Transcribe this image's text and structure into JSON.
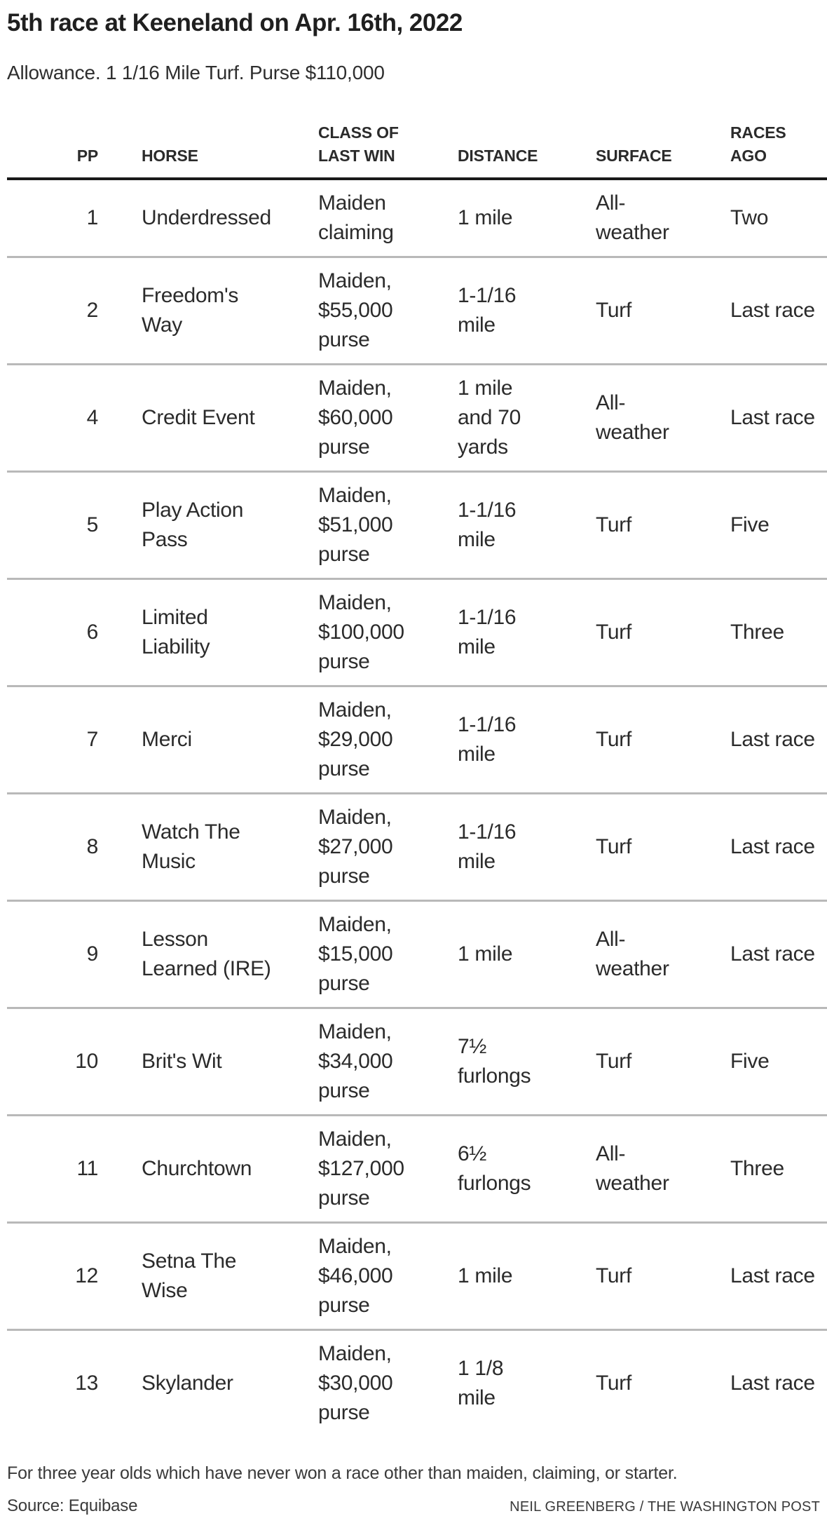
{
  "chart_data": {
    "type": "table",
    "title": "5th race at Keeneland on Apr. 16th, 2022",
    "subtitle": "Allowance. 1 1/16 Mile Turf. Purse $110,000",
    "columns": [
      {
        "key": "pp",
        "label_lines": [
          "PP"
        ]
      },
      {
        "key": "horse",
        "label_lines": [
          "HORSE"
        ]
      },
      {
        "key": "class_of_last_win",
        "label_lines": [
          "CLASS OF",
          "LAST WIN"
        ]
      },
      {
        "key": "distance",
        "label_lines": [
          "DISTANCE"
        ]
      },
      {
        "key": "surface",
        "label_lines": [
          "SURFACE"
        ]
      },
      {
        "key": "races_ago",
        "label_lines": [
          "RACES AGO"
        ]
      }
    ],
    "rows": [
      {
        "pp": "1",
        "horse": [
          "Underdressed"
        ],
        "class_of_last_win": [
          "Maiden",
          "claiming"
        ],
        "distance": [
          "1 mile"
        ],
        "surface": [
          "All-",
          "weather"
        ],
        "races_ago": [
          "Two"
        ]
      },
      {
        "pp": "2",
        "horse": [
          "Freedom's",
          "Way"
        ],
        "class_of_last_win": [
          "Maiden,",
          "$55,000",
          "purse"
        ],
        "distance": [
          "1-1/16",
          "mile"
        ],
        "surface": [
          "Turf"
        ],
        "races_ago": [
          "Last race"
        ]
      },
      {
        "pp": "4",
        "horse": [
          "Credit Event"
        ],
        "class_of_last_win": [
          "Maiden,",
          "$60,000",
          "purse"
        ],
        "distance": [
          "1 mile",
          "and 70",
          "yards"
        ],
        "surface": [
          "All-",
          "weather"
        ],
        "races_ago": [
          "Last race"
        ]
      },
      {
        "pp": "5",
        "horse": [
          "Play Action",
          "Pass"
        ],
        "class_of_last_win": [
          "Maiden,",
          "$51,000",
          "purse"
        ],
        "distance": [
          "1-1/16",
          "mile"
        ],
        "surface": [
          "Turf"
        ],
        "races_ago": [
          "Five"
        ]
      },
      {
        "pp": "6",
        "horse": [
          "Limited",
          "Liability"
        ],
        "class_of_last_win": [
          "Maiden,",
          "$100,000",
          "purse"
        ],
        "distance": [
          "1-1/16",
          "mile"
        ],
        "surface": [
          "Turf"
        ],
        "races_ago": [
          "Three"
        ]
      },
      {
        "pp": "7",
        "horse": [
          "Merci"
        ],
        "class_of_last_win": [
          "Maiden,",
          "$29,000",
          "purse"
        ],
        "distance": [
          "1-1/16",
          "mile"
        ],
        "surface": [
          "Turf"
        ],
        "races_ago": [
          "Last race"
        ]
      },
      {
        "pp": "8",
        "horse": [
          "Watch The",
          "Music"
        ],
        "class_of_last_win": [
          "Maiden,",
          "$27,000",
          "purse"
        ],
        "distance": [
          "1-1/16",
          "mile"
        ],
        "surface": [
          "Turf"
        ],
        "races_ago": [
          "Last race"
        ]
      },
      {
        "pp": "9",
        "horse": [
          "Lesson",
          "Learned (IRE)"
        ],
        "class_of_last_win": [
          "Maiden,",
          "$15,000",
          "purse"
        ],
        "distance": [
          "1 mile"
        ],
        "surface": [
          "All-",
          "weather"
        ],
        "races_ago": [
          "Last race"
        ]
      },
      {
        "pp": "10",
        "horse": [
          "Brit's Wit"
        ],
        "class_of_last_win": [
          "Maiden,",
          "$34,000",
          "purse"
        ],
        "distance": [
          "7½",
          "furlongs"
        ],
        "surface": [
          "Turf"
        ],
        "races_ago": [
          "Five"
        ]
      },
      {
        "pp": "11",
        "horse": [
          "Churchtown"
        ],
        "class_of_last_win": [
          "Maiden,",
          "$127,000",
          "purse"
        ],
        "distance": [
          "6½",
          "furlongs"
        ],
        "surface": [
          "All-",
          "weather"
        ],
        "races_ago": [
          "Three"
        ]
      },
      {
        "pp": "12",
        "horse": [
          "Setna The",
          "Wise"
        ],
        "class_of_last_win": [
          "Maiden,",
          "$46,000",
          "purse"
        ],
        "distance": [
          "1 mile"
        ],
        "surface": [
          "Turf"
        ],
        "races_ago": [
          "Last race"
        ]
      },
      {
        "pp": "13",
        "horse": [
          "Skylander"
        ],
        "class_of_last_win": [
          "Maiden,",
          "$30,000",
          "purse"
        ],
        "distance": [
          "1 1/8",
          "mile"
        ],
        "surface": [
          "Turf"
        ],
        "races_ago": [
          "Last race"
        ]
      }
    ],
    "note": "For three year olds which have never won a race other than maiden, claiming, or starter.",
    "source": "Source: Equibase",
    "credit": "NEIL GREENBERG / THE WASHINGTON POST",
    "layout": {
      "legend_position": "none",
      "grid": "horizontal-row-separators"
    },
    "colors": {
      "header_rule": "#191919",
      "row_separator": "#b9b9b9",
      "text": "#2b2b2b"
    }
  }
}
